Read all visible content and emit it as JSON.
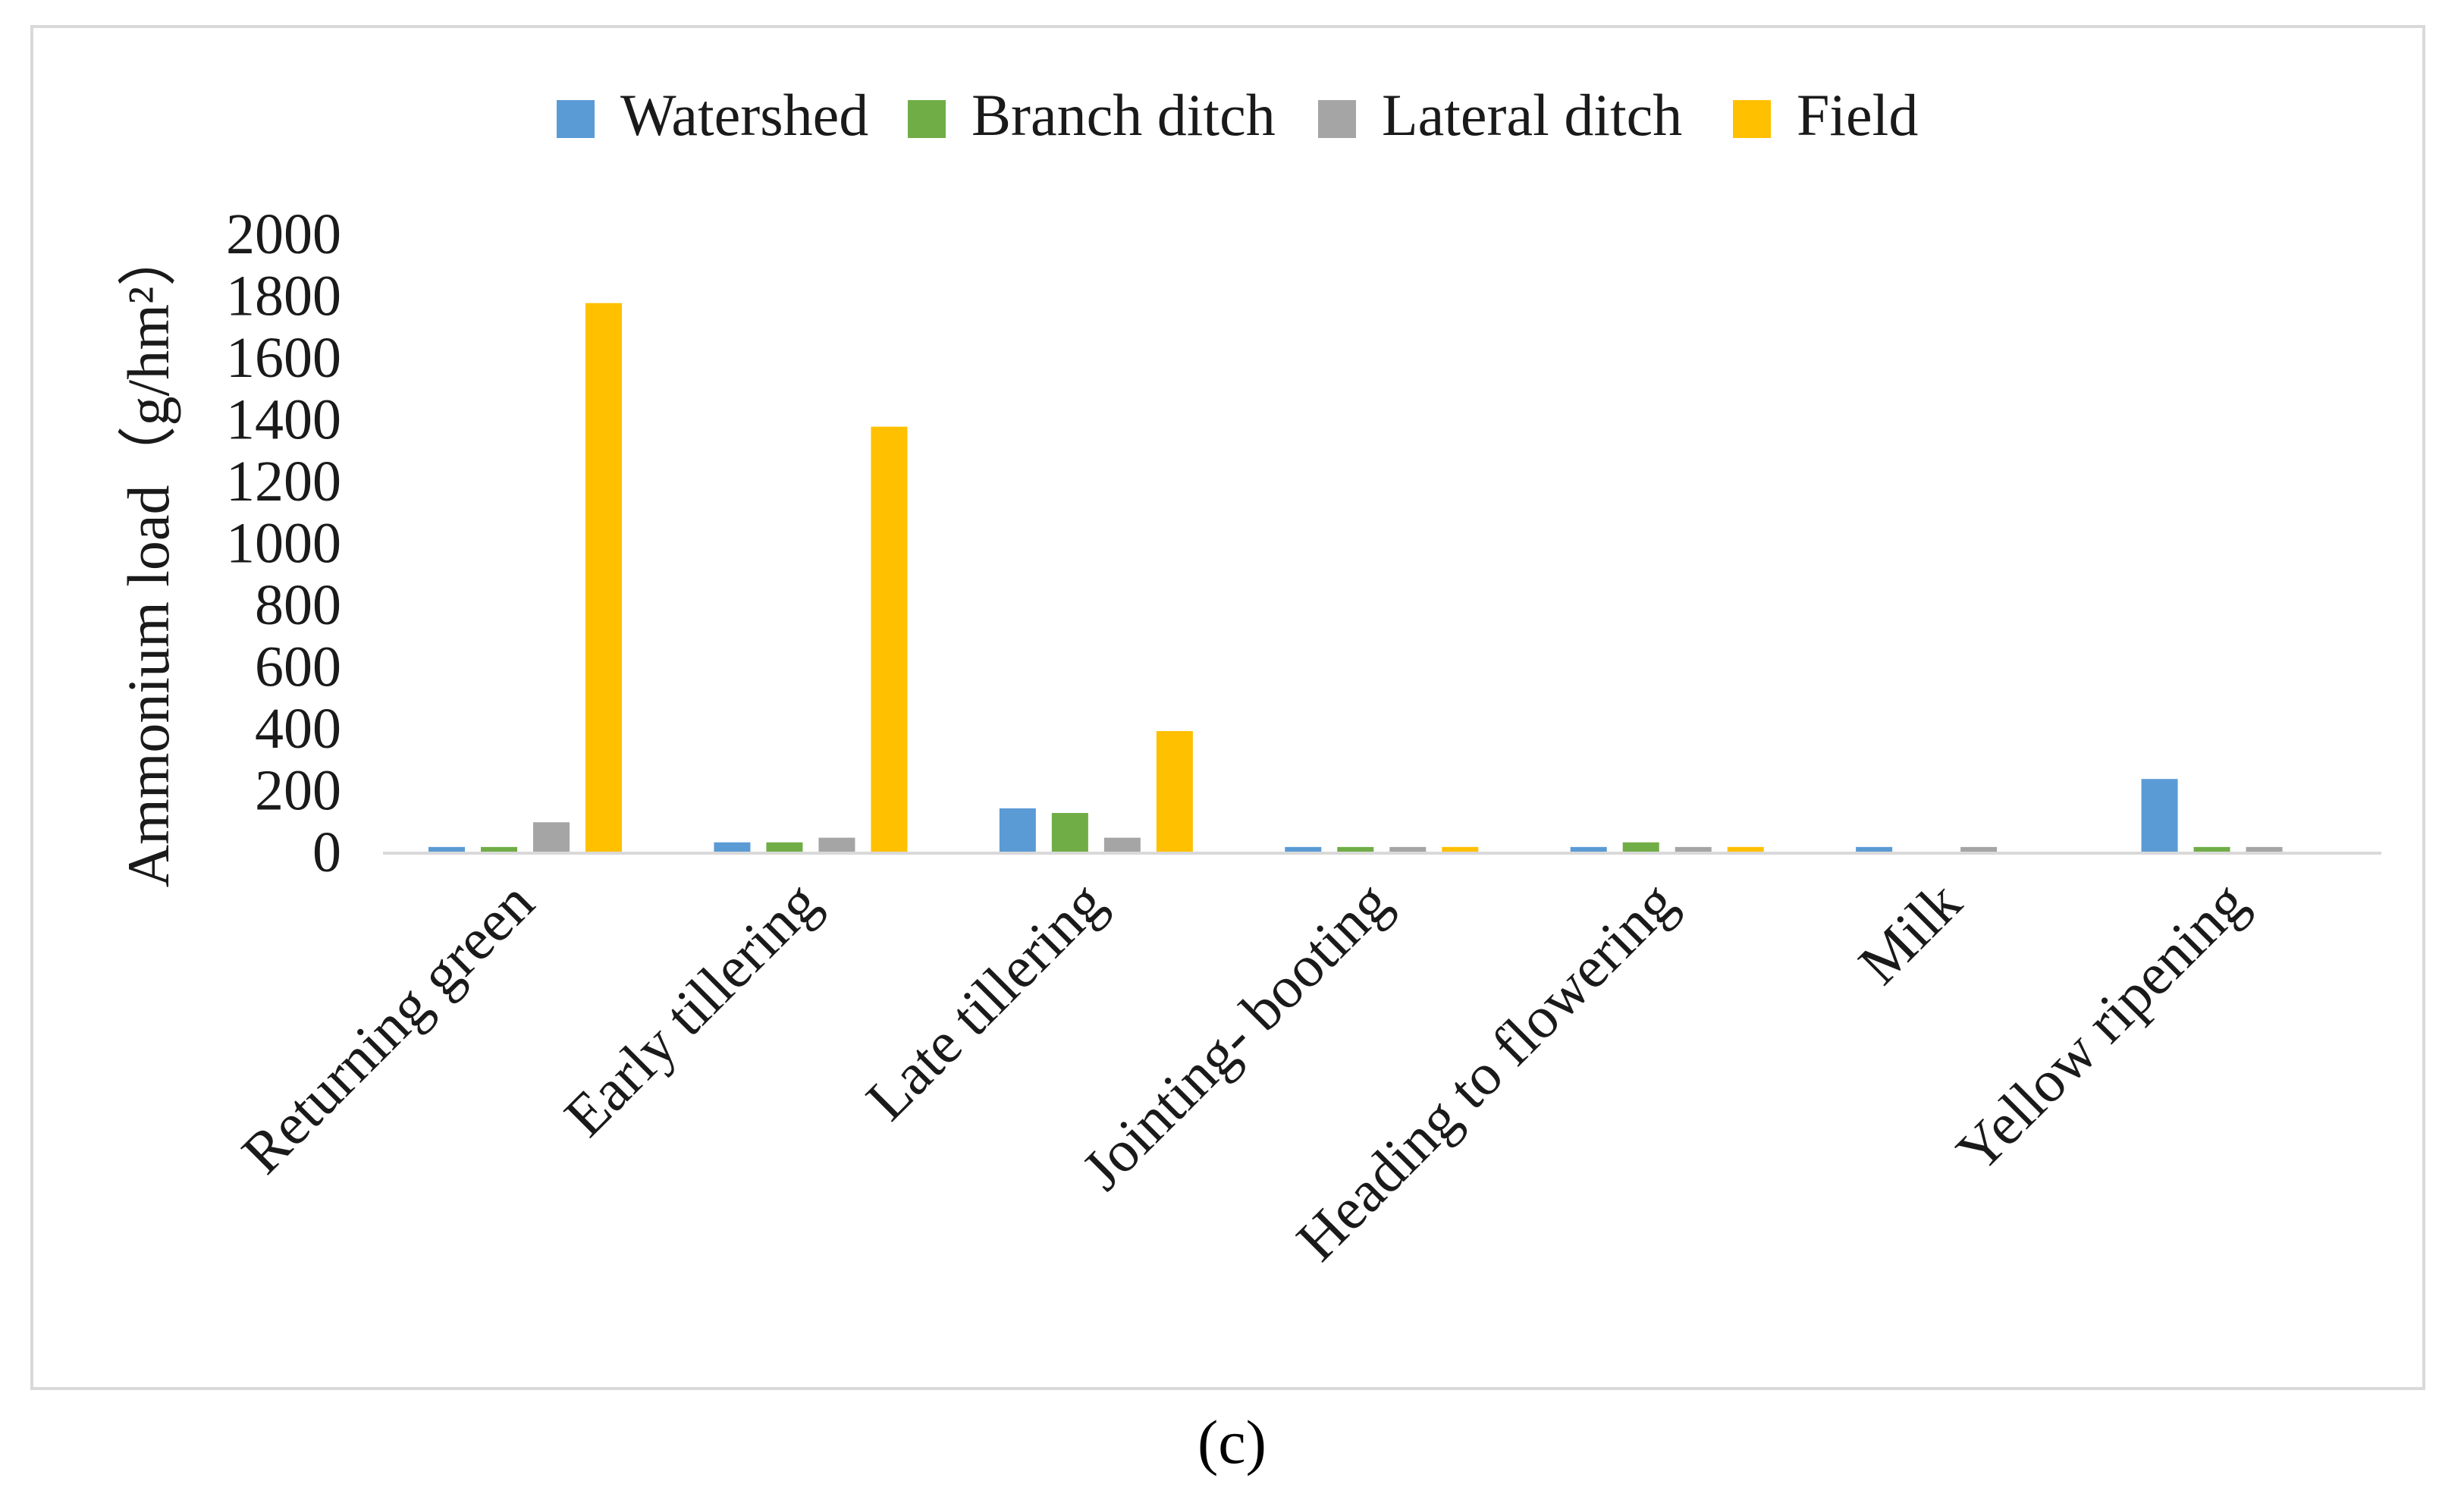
{
  "chart_data": {
    "type": "bar",
    "title": "",
    "xlabel": "",
    "ylabel": "Ammonium load（g/hm²）",
    "ylim": [
      0,
      2000
    ],
    "yticks": [
      0,
      200,
      400,
      600,
      800,
      1000,
      1200,
      1400,
      1600,
      1800,
      2000
    ],
    "grid": false,
    "legend_position": "top",
    "categories": [
      "Returning green",
      "Early tillering",
      "Late tillering",
      "Jointing- booting",
      "Heading to flowering",
      "Milk",
      "Yellow ripening"
    ],
    "series": [
      {
        "name": "Watershed",
        "color": "#5b9bd5",
        "values": [
          20,
          35,
          145,
          20,
          20,
          20,
          240
        ]
      },
      {
        "name": "Branch ditch",
        "color": "#70ad47",
        "values": [
          20,
          35,
          130,
          20,
          35,
          0,
          20
        ]
      },
      {
        "name": "Lateral ditch",
        "color": "#a5a5a5",
        "values": [
          100,
          50,
          50,
          20,
          20,
          20,
          20
        ]
      },
      {
        "name": "Field",
        "color": "#ffc000",
        "values": [
          1780,
          1380,
          395,
          20,
          20,
          0,
          0
        ]
      }
    ]
  },
  "caption": "(c)"
}
